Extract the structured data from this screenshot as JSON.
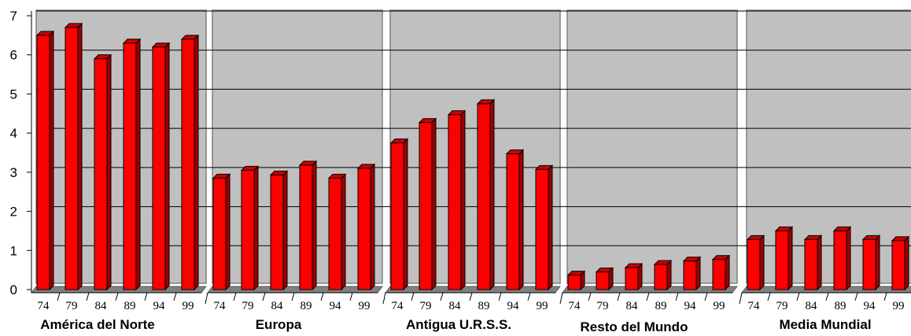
{
  "chart_data": {
    "type": "bar",
    "ylim": [
      0,
      7
    ],
    "yticks": [
      "0",
      "1",
      "2",
      "3",
      "4",
      "5",
      "6",
      "7"
    ],
    "grid": true,
    "legend": "none",
    "colors": {
      "bar": "#ff0000",
      "bar_top": "#cc0000",
      "bar_side": "#990000",
      "panel": "#c0c0c0",
      "floor": "#808080"
    },
    "groups": [
      {
        "name": "América del Norte",
        "categories": [
          "74",
          "79",
          "84",
          "89",
          "94",
          "99"
        ],
        "values": [
          6.5,
          6.7,
          5.9,
          6.3,
          6.2,
          6.4
        ]
      },
      {
        "name": "Europa",
        "categories": [
          "74",
          "79",
          "84",
          "89",
          "94",
          "99"
        ],
        "values": [
          2.85,
          3.05,
          2.93,
          3.18,
          2.85,
          3.1
        ]
      },
      {
        "name": "Antigua U.R.S.S.",
        "categories": [
          "74",
          "79",
          "84",
          "89",
          "94",
          "99"
        ],
        "values": [
          3.75,
          4.27,
          4.47,
          4.75,
          3.47,
          3.07
        ]
      },
      {
        "name": "Resto del Mundo",
        "categories": [
          "74",
          "79",
          "84",
          "89",
          "94",
          "99"
        ],
        "values": [
          0.37,
          0.45,
          0.56,
          0.64,
          0.73,
          0.77
        ]
      },
      {
        "name": "Media Mundial",
        "categories": [
          "74",
          "79",
          "84",
          "89",
          "94",
          "99"
        ],
        "values": [
          1.28,
          1.5,
          1.28,
          1.5,
          1.28,
          1.25
        ]
      }
    ]
  }
}
